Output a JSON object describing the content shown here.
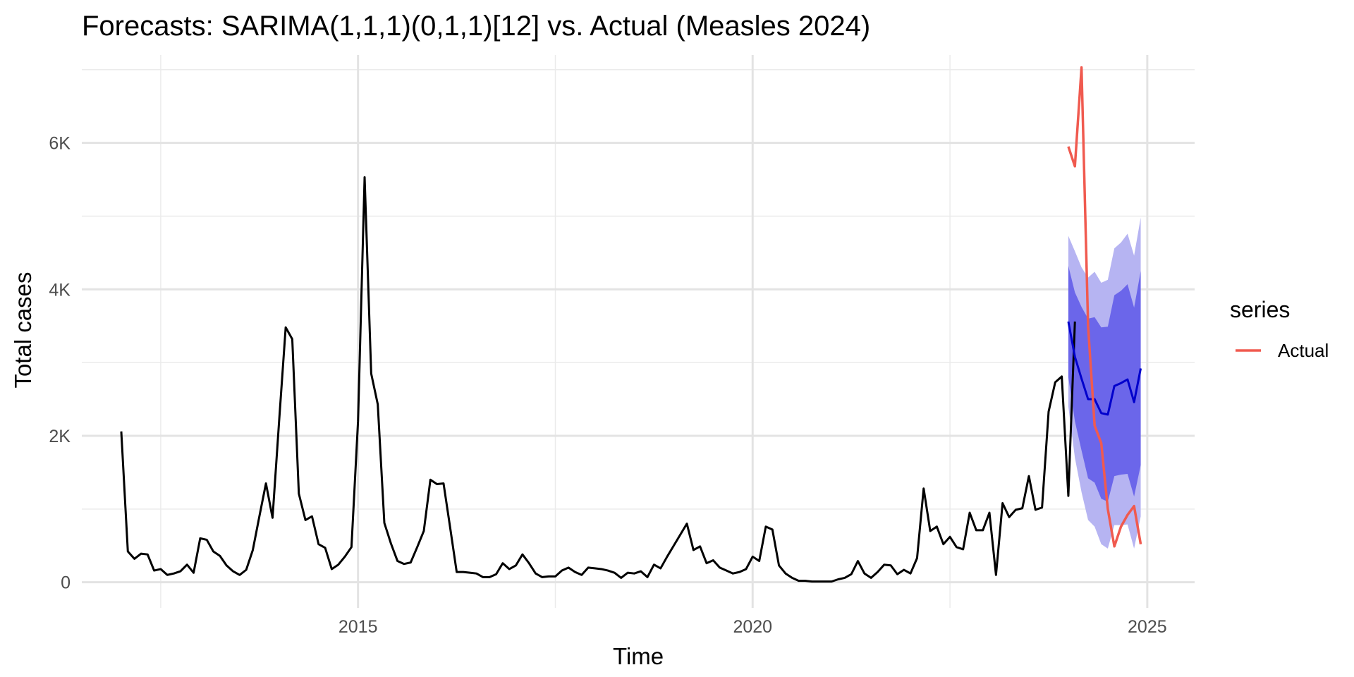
{
  "chart_data": {
    "type": "line",
    "title": "Forecasts: SARIMA(1,1,1)(0,1,1)[12] vs. Actual (Measles 2024)",
    "xlabel": "Time",
    "ylabel": "Total cases",
    "xlim": [
      2011.5,
      2025.6
    ],
    "ylim": [
      -350,
      7200
    ],
    "x_ticks": [
      2015,
      2020,
      2025
    ],
    "x_tick_labels": [
      "2015",
      "2020",
      "2025"
    ],
    "x_minor_ticks": [
      2012.5,
      2017.5,
      2022.5
    ],
    "y_ticks": [
      0,
      2000,
      4000,
      6000
    ],
    "y_tick_labels": [
      "0",
      "2K",
      "4K",
      "6K"
    ],
    "y_minor_ticks": [
      1000,
      3000,
      5000,
      7000
    ],
    "grid": true,
    "legend": {
      "title": "series",
      "position": "right",
      "entries": [
        {
          "label": "Actual",
          "color": "#f05a4f"
        }
      ]
    },
    "colors": {
      "history": "#000000",
      "forecast": "#0000cc",
      "pi80": "#6b66ea",
      "pi95": "#b6b4f2",
      "actual": "#f05a4f"
    },
    "history": {
      "start": 2012.0,
      "step_months": 1,
      "values": [
        2060,
        420,
        320,
        390,
        380,
        160,
        180,
        100,
        120,
        150,
        240,
        130,
        600,
        580,
        420,
        360,
        230,
        150,
        100,
        170,
        440,
        900,
        1350,
        880,
        2200,
        3480,
        3320,
        1210,
        850,
        900,
        520,
        470,
        180,
        240,
        350,
        480,
        2200,
        5530,
        2850,
        2430,
        810,
        530,
        290,
        250,
        270,
        480,
        700,
        1400,
        1340,
        1350,
        750,
        140,
        140,
        130,
        120,
        70,
        70,
        110,
        260,
        180,
        230,
        380,
        260,
        120,
        70,
        80,
        80,
        160,
        200,
        140,
        100,
        200,
        190,
        180,
        160,
        130,
        60,
        130,
        120,
        150,
        70,
        240,
        190,
        350,
        500,
        650,
        800,
        440,
        490,
        260,
        300,
        200,
        160,
        120,
        140,
        180,
        350,
        290,
        760,
        720,
        230,
        120,
        60,
        20,
        20,
        10,
        10,
        10,
        10,
        40,
        60,
        110,
        290,
        120,
        60,
        140,
        240,
        230,
        110,
        170,
        120,
        330,
        1280,
        700,
        760,
        520,
        620,
        480,
        450,
        950,
        710,
        710,
        950,
        100,
        1080,
        890,
        990,
        1010,
        1450,
        990,
        1020,
        2330,
        2730,
        2810,
        1180,
        3560
      ]
    },
    "forecast": {
      "x": [
        2024.0,
        2024.083,
        2024.167,
        2024.25,
        2024.333,
        2024.417,
        2024.5,
        2024.583,
        2024.667,
        2024.75,
        2024.833,
        2024.917
      ],
      "mean": [
        3560,
        3080,
        2780,
        2500,
        2500,
        2310,
        2290,
        2680,
        2720,
        2770,
        2460,
        2920
      ],
      "lo80": [
        2800,
        2200,
        1800,
        1420,
        1360,
        1140,
        1100,
        1450,
        1470,
        1480,
        1170,
        1600
      ],
      "hi80": [
        4320,
        3960,
        3760,
        3600,
        3620,
        3480,
        3490,
        3920,
        3980,
        4070,
        3750,
        4250
      ],
      "lo95": [
        2400,
        1700,
        1230,
        850,
        760,
        520,
        460,
        780,
        780,
        790,
        460,
        900
      ],
      "hi95": [
        4730,
        4520,
        4300,
        4160,
        4240,
        4090,
        4130,
        4560,
        4640,
        4760,
        4460,
        4980
      ]
    },
    "series": [
      {
        "name": "Actual",
        "x": [
          2024.0,
          2024.083,
          2024.167,
          2024.25,
          2024.333,
          2024.417,
          2024.5,
          2024.583,
          2024.667,
          2024.75,
          2024.833,
          2024.917
        ],
        "values": [
          5950,
          5680,
          7030,
          3500,
          2140,
          1900,
          1000,
          490,
          760,
          920,
          1040,
          520
        ]
      }
    ]
  }
}
